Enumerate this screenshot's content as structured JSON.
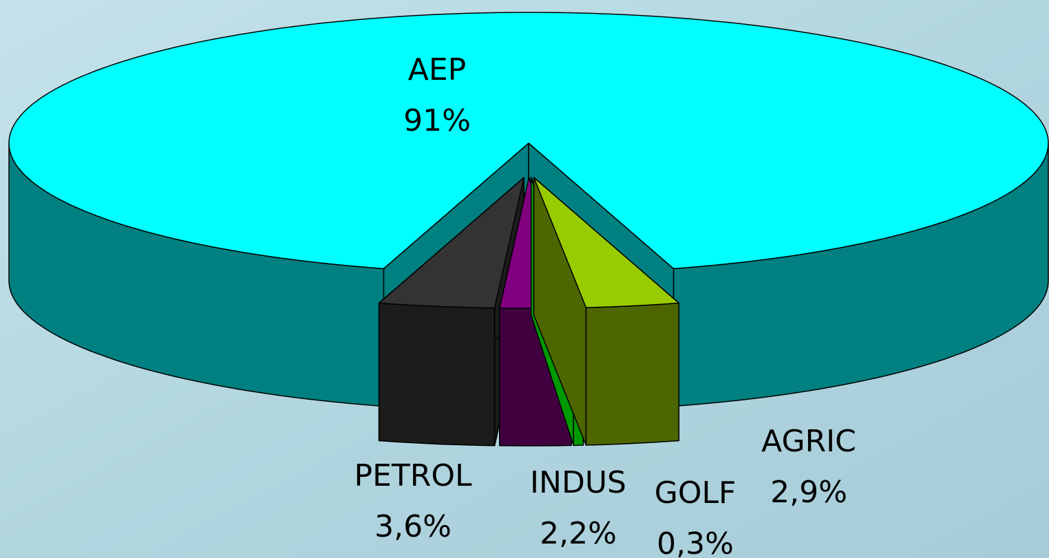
{
  "chart_data": {
    "type": "pie3d",
    "categories": [
      "AEP",
      "PETROL",
      "INDUS",
      "GOLF",
      "AGRIC"
    ],
    "values": [
      91,
      3.6,
      2.2,
      0.3,
      2.9
    ],
    "value_labels": [
      "91%",
      "3,6%",
      "2,2%",
      "0,3%",
      "2,9%"
    ],
    "colors": [
      "#00ffff",
      "#333333",
      "#800080",
      "#33ff33",
      "#99cc00"
    ],
    "side_colors": [
      "#008080",
      "#1c1c1c",
      "#400040",
      "#009900",
      "#4d6600"
    ]
  }
}
